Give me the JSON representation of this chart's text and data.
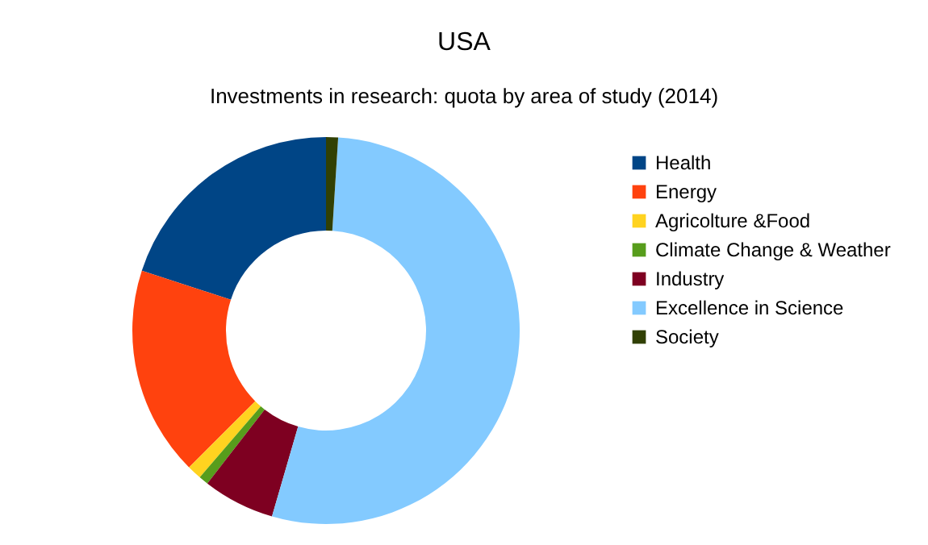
{
  "chart_data": {
    "type": "donut",
    "title": "USA",
    "subtitle": "Investments in research: quota by area of study (2014)",
    "categories": [
      "Health",
      "Energy",
      "Agricolture &Food",
      "Climate Change & Weather",
      "Industry",
      "Excellence in Science",
      "Society"
    ],
    "values": [
      20,
      17.5,
      1.2,
      0.8,
      6,
      53.5,
      1
    ],
    "colors": [
      "#004586",
      "#ff420e",
      "#ffd320",
      "#579d1c",
      "#7e0021",
      "#83caff",
      "#314004"
    ],
    "legend": "right"
  }
}
